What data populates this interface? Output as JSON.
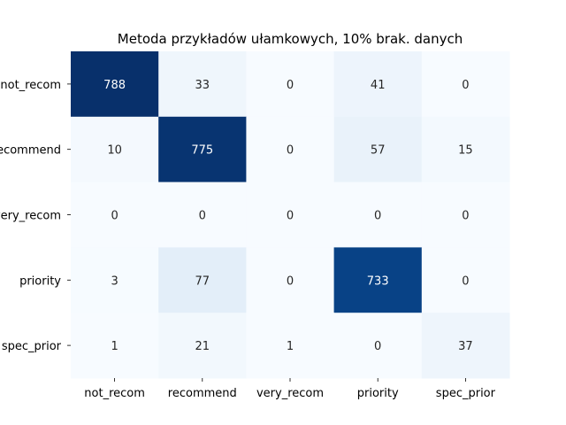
{
  "chart_data": {
    "type": "heatmap",
    "title": "Metoda przykładów ułamkowych, 10% brak. danych",
    "xlabel": "",
    "ylabel": "",
    "x_categories": [
      "not_recom",
      "recommend",
      "very_recom",
      "priority",
      "spec_prior"
    ],
    "y_categories": [
      "not_recom",
      "recommend",
      "very_recom",
      "priority",
      "spec_prior"
    ],
    "values": [
      [
        788,
        33,
        0,
        41,
        0
      ],
      [
        10,
        775,
        0,
        57,
        15
      ],
      [
        0,
        0,
        0,
        0,
        0
      ],
      [
        3,
        77,
        0,
        733,
        0
      ],
      [
        1,
        21,
        1,
        0,
        37
      ]
    ],
    "colormap": "Blues",
    "vmin": 0,
    "vmax": 788,
    "colorbar": false,
    "grid": false,
    "annotate": true
  }
}
